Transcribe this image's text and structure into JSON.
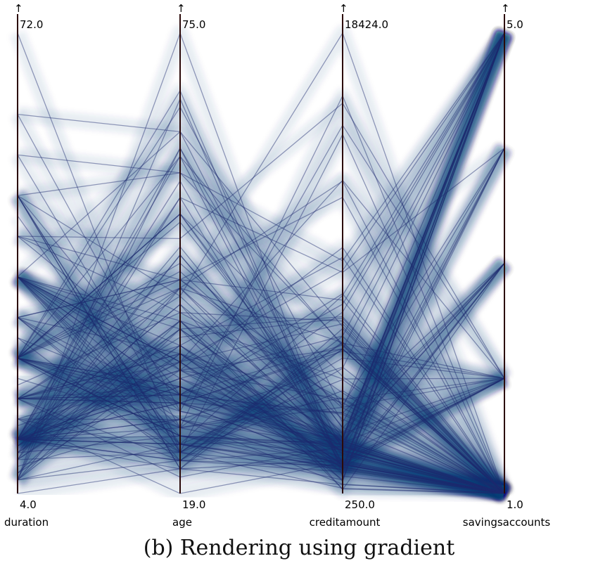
{
  "caption": "(b) Rendering using gradient",
  "chart_data": {
    "type": "parallel-coordinates",
    "rendering": "gradient",
    "color": "#1c2a6e",
    "axes": [
      {
        "name": "duration",
        "min": 4.0,
        "max": 72.0,
        "min_label": "4.0",
        "max_label": "72.0"
      },
      {
        "name": "age",
        "min": 19.0,
        "max": 75.0,
        "min_label": "19.0",
        "max_label": "75.0"
      },
      {
        "name": "creditamount",
        "min": 250.0,
        "max": 18424.0,
        "min_label": "250.0",
        "max_label": "18424.0"
      },
      {
        "name": "savingsaccounts",
        "min": 1.0,
        "max": 5.0,
        "min_label": "1.0",
        "max_label": "5.0"
      }
    ],
    "axis_arrow": "↑",
    "records": [
      [
        6,
        67,
        1169,
        5
      ],
      [
        48,
        22,
        5951,
        1
      ],
      [
        12,
        49,
        2096,
        1
      ],
      [
        42,
        45,
        7882,
        1
      ],
      [
        24,
        53,
        4870,
        1
      ],
      [
        36,
        35,
        9055,
        5
      ],
      [
        24,
        53,
        2835,
        3
      ],
      [
        36,
        35,
        6948,
        1
      ],
      [
        12,
        61,
        3059,
        4
      ],
      [
        30,
        28,
        5234,
        1
      ],
      [
        12,
        25,
        1295,
        1
      ],
      [
        48,
        24,
        4308,
        1
      ],
      [
        12,
        22,
        1567,
        1
      ],
      [
        24,
        60,
        1199,
        1
      ],
      [
        15,
        28,
        1403,
        1
      ],
      [
        24,
        32,
        1282,
        2
      ],
      [
        24,
        53,
        2424,
        5
      ],
      [
        30,
        25,
        8072,
        5
      ],
      [
        24,
        44,
        12579,
        1
      ],
      [
        24,
        31,
        3430,
        3
      ],
      [
        9,
        48,
        2134,
        1
      ],
      [
        6,
        44,
        2647,
        3
      ],
      [
        10,
        48,
        2241,
        1
      ],
      [
        12,
        44,
        1804,
        2
      ],
      [
        10,
        26,
        2069,
        5
      ],
      [
        6,
        36,
        1374,
        1
      ],
      [
        6,
        39,
        426,
        1
      ],
      [
        12,
        42,
        409,
        3
      ],
      [
        7,
        34,
        2415,
        1
      ],
      [
        60,
        63,
        6836,
        1
      ],
      [
        18,
        36,
        1913,
        4
      ],
      [
        24,
        27,
        4020,
        1
      ],
      [
        18,
        30,
        5866,
        2
      ],
      [
        12,
        57,
        1264,
        5
      ],
      [
        12,
        33,
        1474,
        2
      ],
      [
        45,
        25,
        4746,
        1
      ],
      [
        48,
        31,
        6110,
        1
      ],
      [
        18,
        37,
        2100,
        1
      ],
      [
        10,
        37,
        1225,
        1
      ],
      [
        9,
        24,
        458,
        1
      ],
      [
        30,
        30,
        2333,
        3
      ],
      [
        12,
        26,
        1158,
        3
      ],
      [
        18,
        44,
        6204,
        1
      ],
      [
        30,
        24,
        6187,
        2
      ],
      [
        48,
        58,
        6143,
        1
      ],
      [
        11,
        35,
        1393,
        1
      ],
      [
        36,
        39,
        2299,
        3
      ],
      [
        6,
        23,
        1352,
        3
      ],
      [
        11,
        39,
        7228,
        1
      ],
      [
        12,
        28,
        2073,
        1
      ],
      [
        24,
        29,
        2333,
        5
      ],
      [
        27,
        30,
        5965,
        1
      ],
      [
        12,
        25,
        1262,
        1
      ],
      [
        18,
        31,
        3378,
        1
      ],
      [
        36,
        26,
        2225,
        1
      ],
      [
        6,
        25,
        783,
        5
      ],
      [
        12,
        33,
        6468,
        5
      ],
      [
        36,
        37,
        9566,
        1
      ],
      [
        18,
        43,
        1961,
        1
      ],
      [
        36,
        23,
        6229,
        1
      ],
      [
        9,
        36,
        1391,
        2
      ],
      [
        15,
        34,
        1537,
        4
      ],
      [
        36,
        63,
        1953,
        1
      ],
      [
        48,
        24,
        14421,
        1
      ],
      [
        24,
        46,
        3181,
        1
      ],
      [
        27,
        23,
        5190,
        5
      ],
      [
        12,
        30,
        2171,
        1
      ],
      [
        12,
        40,
        1007,
        4
      ],
      [
        36,
        40,
        1819,
        1
      ],
      [
        36,
        31,
        2394,
        5
      ],
      [
        36,
        31,
        8133,
        1
      ],
      [
        7,
        40,
        730,
        5
      ],
      [
        8,
        28,
        1164,
        1
      ],
      [
        42,
        34,
        5954,
        1
      ],
      [
        36,
        29,
        1977,
        5
      ],
      [
        12,
        27,
        1526,
        1
      ],
      [
        42,
        41,
        3965,
        1
      ],
      [
        11,
        40,
        4771,
        2
      ],
      [
        54,
        58,
        9436,
        5
      ],
      [
        30,
        36,
        3832,
        1
      ],
      [
        24,
        24,
        5943,
        5
      ],
      [
        15,
        24,
        1213,
        3
      ],
      [
        18,
        35,
        1568,
        2
      ],
      [
        24,
        26,
        1755,
        1
      ],
      [
        10,
        39,
        2315,
        1
      ],
      [
        12,
        32,
        1412,
        1
      ],
      [
        18,
        30,
        1295,
        1
      ],
      [
        36,
        35,
        12612,
        2
      ],
      [
        18,
        31,
        2249,
        2
      ],
      [
        12,
        23,
        1108,
        1
      ],
      [
        12,
        28,
        618,
        1
      ],
      [
        12,
        25,
        1409,
        1
      ],
      [
        12,
        35,
        797,
        5
      ],
      [
        24,
        47,
        3617,
        5
      ],
      [
        12,
        30,
        1318,
        4
      ],
      [
        54,
        27,
        15945,
        1
      ],
      [
        12,
        23,
        2012,
        5
      ],
      [
        18,
        36,
        2622,
        2
      ],
      [
        36,
        25,
        2337,
        1
      ],
      [
        20,
        41,
        7057,
        1
      ],
      [
        24,
        26,
        1469,
        2
      ],
      [
        36,
        33,
        2323,
        1
      ],
      [
        6,
        75,
        932,
        1
      ],
      [
        9,
        37,
        1919,
        1
      ],
      [
        12,
        42,
        2445,
        5
      ],
      [
        24,
        45,
        11938,
        1
      ],
      [
        18,
        23,
        6458,
        1
      ],
      [
        12,
        60,
        6078,
        1
      ],
      [
        24,
        31,
        7721,
        5
      ],
      [
        14,
        34,
        3965,
        2
      ],
      [
        6,
        61,
        1410,
        1
      ],
      [
        24,
        26,
        2181,
        5
      ],
      [
        60,
        29,
        14782,
        2
      ],
      [
        30,
        45,
        3745,
        4
      ],
      [
        12,
        32,
        2473,
        5
      ],
      [
        4,
        22,
        601,
        1
      ],
      [
        72,
        24,
        5595,
        2
      ],
      [
        24,
        66,
        3632,
        1
      ],
      [
        48,
        43,
        18424,
        1
      ],
      [
        21,
        27,
        3652,
        2
      ],
      [
        24,
        30,
        3446,
        1
      ],
      [
        12,
        38,
        7167,
        1
      ],
      [
        36,
        34,
        9960,
        1
      ],
      [
        24,
        32,
        1922,
        1
      ],
      [
        18,
        21,
        2121,
        1
      ],
      [
        48,
        22,
        6758,
        1
      ],
      [
        30,
        45,
        4221,
        1
      ],
      [
        15,
        19,
        1473,
        1
      ],
      [
        9,
        55,
        1478,
        1
      ],
      [
        42,
        50,
        15653,
        2
      ],
      [
        24,
        68,
        1283,
        5
      ],
      [
        12,
        55,
        8978,
        4
      ],
      [
        24,
        52,
        2859,
        1
      ],
      [
        36,
        27,
        7409,
        5
      ],
      [
        18,
        32,
        1823,
        1
      ]
    ]
  }
}
